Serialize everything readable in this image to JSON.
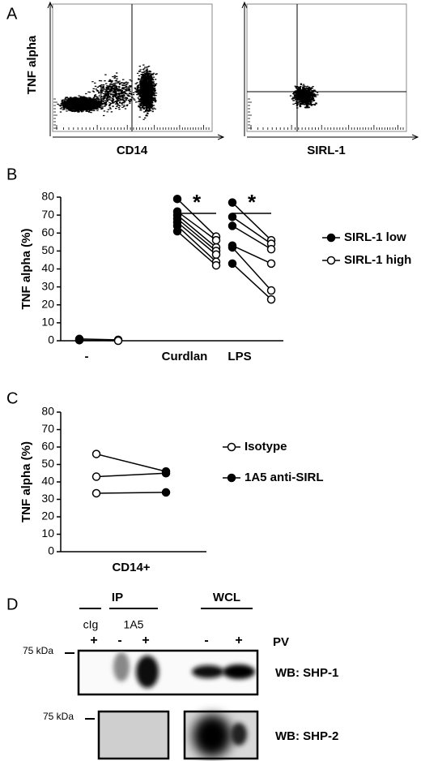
{
  "panel_labels": [
    "A",
    "B",
    "C",
    "D"
  ],
  "flow": {
    "ylabel": "TNF alpha",
    "plots": [
      {
        "xlabel": "CD14"
      },
      {
        "xlabel": "SIRL-1"
      }
    ]
  },
  "chart_data": [
    {
      "type": "paired-dot",
      "ylabel": "TNF alpha (%)",
      "categories": [
        "-",
        "Curdlan",
        "LPS"
      ],
      "significance": [
        null,
        "*",
        "*"
      ],
      "ylim": [
        0,
        80
      ],
      "yticks": [
        0,
        10,
        20,
        30,
        40,
        50,
        60,
        70,
        80
      ],
      "series": [
        {
          "name": "SIRL-1 low",
          "color": "#000000",
          "marker": "filled",
          "values": [
            [
              1,
              0.3
            ],
            [
              79,
              72,
              70,
              68,
              66,
              64,
              61
            ],
            [
              77,
              69,
              64,
              53,
              52,
              43
            ]
          ]
        },
        {
          "name": "SIRL-1 high",
          "color": "#000000",
          "marker": "open",
          "values": [
            [
              0.5,
              0
            ],
            [
              58,
              56,
              52,
              50,
              48,
              44,
              42
            ],
            [
              56,
              54,
              51,
              43,
              28,
              23
            ]
          ]
        }
      ]
    },
    {
      "type": "paired-dot",
      "ylabel": "TNF alpha (%)",
      "categories": [
        "CD14+"
      ],
      "significance": [
        null
      ],
      "ylim": [
        0,
        80
      ],
      "yticks": [
        0,
        10,
        20,
        30,
        40,
        50,
        60,
        70,
        80
      ],
      "series": [
        {
          "name": "Isotype",
          "color": "#000000",
          "marker": "open",
          "values": [
            [
              56,
              43,
              33.5
            ]
          ]
        },
        {
          "name": "1A5 anti-SIRL",
          "color": "#000000",
          "marker": "filled",
          "values": [
            [
              46,
              45,
              34
            ]
          ]
        }
      ]
    }
  ],
  "blot": {
    "ip": "IP",
    "wcl": "WCL",
    "cig": "cIg",
    "a15": "1A5",
    "lanes": [
      "+",
      "-",
      "+",
      "-",
      "+"
    ],
    "pv": "PV",
    "marker": "75 kDa",
    "rows": [
      "WB: SHP-1",
      "WB: SHP-2"
    ]
  }
}
